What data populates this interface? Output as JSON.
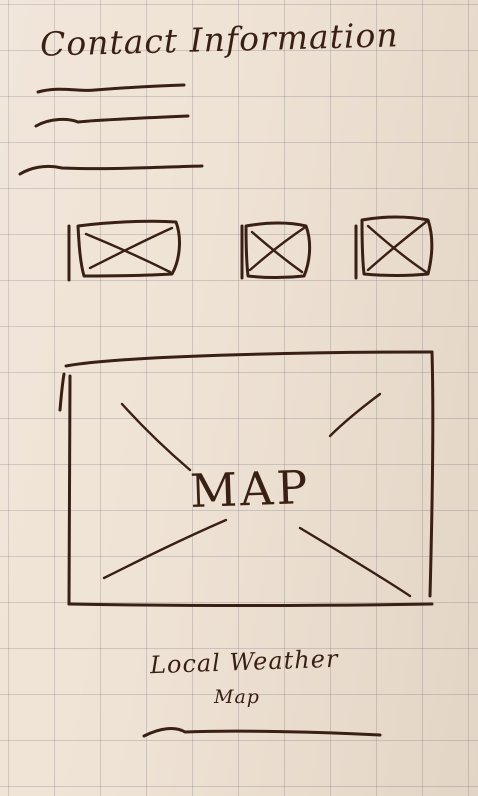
{
  "header": {
    "title": "Contact Information"
  },
  "contact_lines": [
    "text-line",
    "text-line",
    "text-line"
  ],
  "image_placeholders": [
    "image-placeholder",
    "image-placeholder",
    "image-placeholder"
  ],
  "map": {
    "label": "MAP"
  },
  "caption": {
    "line1": "Local Weather",
    "line2": "Map"
  },
  "colors": {
    "paper": "#efe3d5",
    "grid": "#8e86a0",
    "ink": "#3a1f14"
  }
}
